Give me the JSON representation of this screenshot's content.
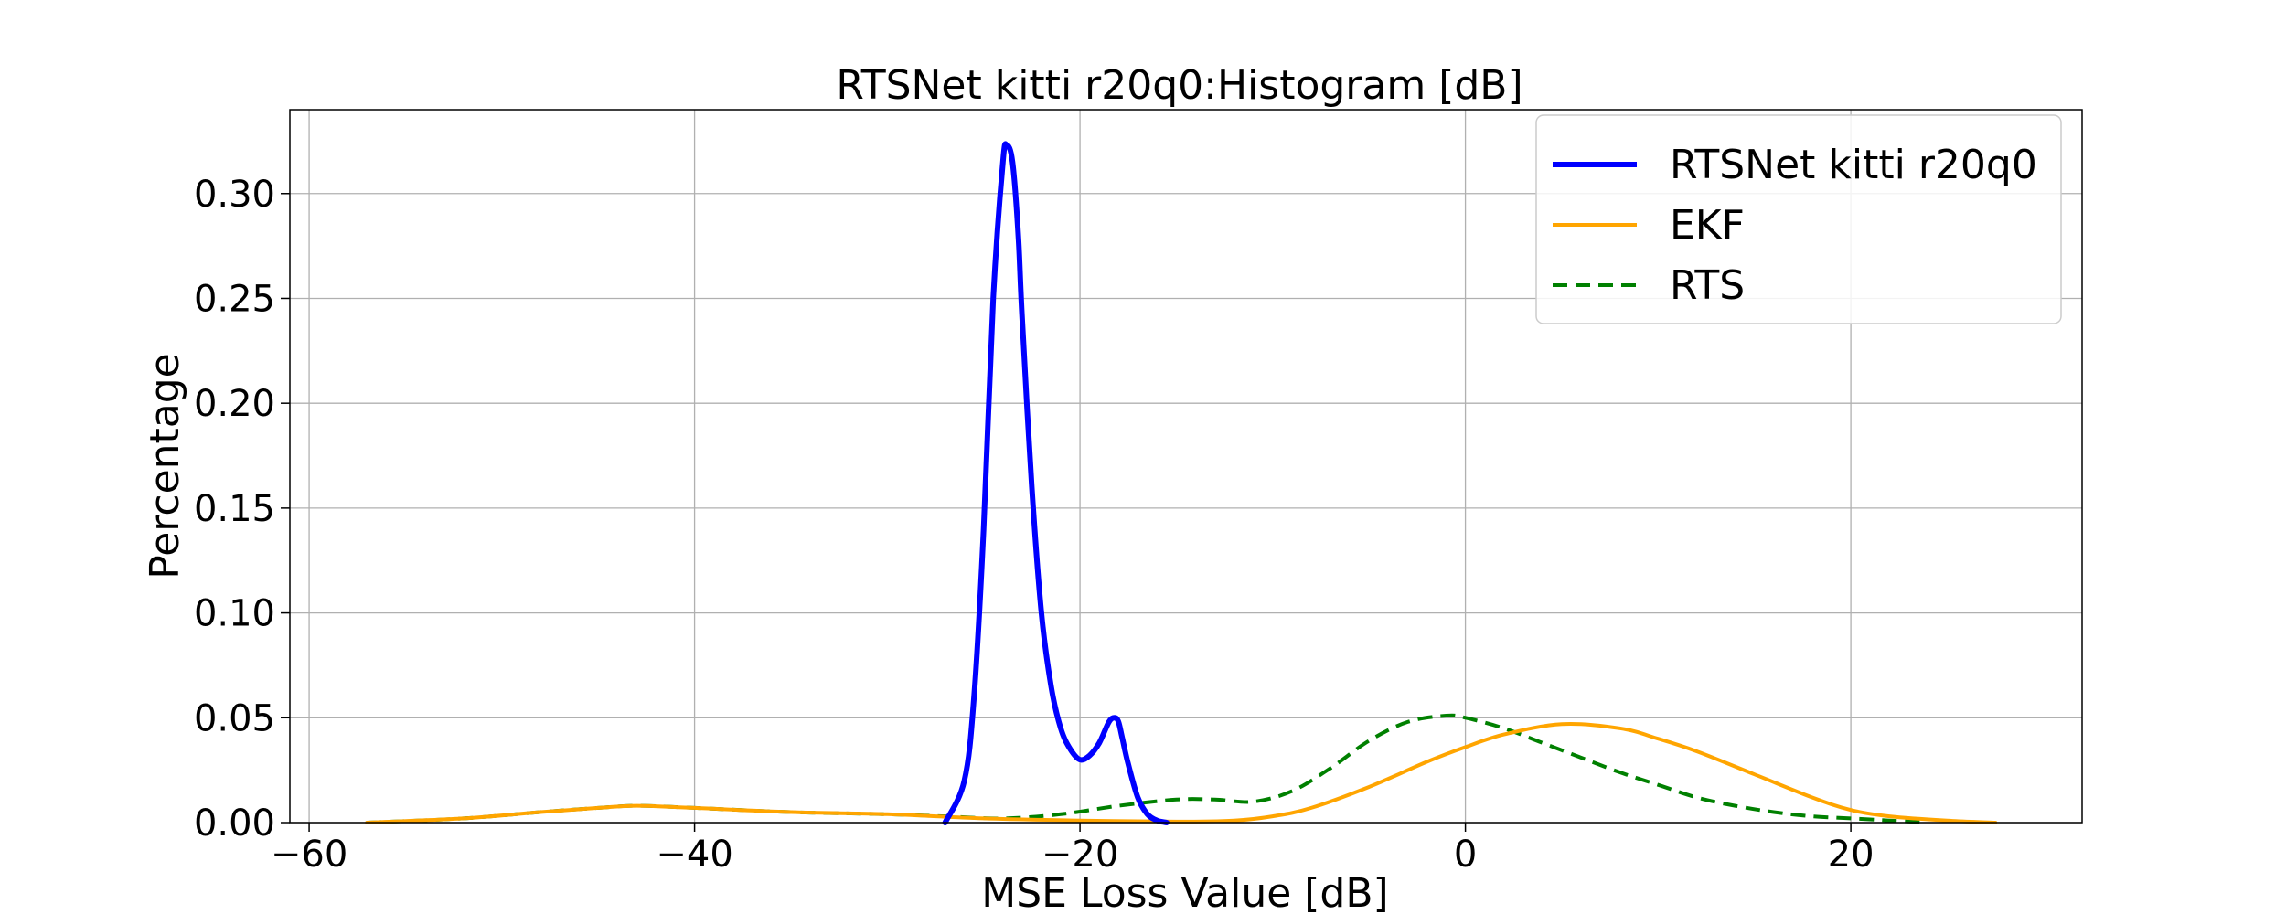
{
  "chart_data": {
    "type": "line",
    "title": "RTSNet kitti r20q0:Histogram [dB]",
    "xlabel": "MSE Loss Value [dB]",
    "ylabel": "Percentage",
    "xlim": [
      -61,
      32
    ],
    "ylim": [
      0,
      0.34
    ],
    "xticks": [
      -60,
      -40,
      -20,
      0,
      20
    ],
    "xtick_labels": [
      "−60",
      "−40",
      "−20",
      "0",
      "20"
    ],
    "yticks": [
      0.0,
      0.05,
      0.1,
      0.15,
      0.2,
      0.25,
      0.3
    ],
    "ytick_labels": [
      "0.00",
      "0.05",
      "0.10",
      "0.15",
      "0.20",
      "0.25",
      "0.30"
    ],
    "grid": true,
    "legend_position": "top-right",
    "series": [
      {
        "name": "RTSNet kitti r20q0",
        "color": "#0000ff",
        "style": "solid",
        "width": "thick",
        "x": [
          -27,
          -26,
          -25.5,
          -25,
          -24.5,
          -24,
          -23.8,
          -23.5,
          -23.2,
          -23,
          -22.5,
          -22,
          -21.5,
          -21,
          -20.5,
          -20,
          -19.5,
          -19,
          -18.5,
          -18.2,
          -18,
          -17.8,
          -17.5,
          -17,
          -16.5,
          -16,
          -15.5
        ],
        "y": [
          0.0,
          0.02,
          0.06,
          0.14,
          0.25,
          0.315,
          0.323,
          0.315,
          0.28,
          0.24,
          0.16,
          0.1,
          0.065,
          0.045,
          0.035,
          0.03,
          0.032,
          0.038,
          0.048,
          0.05,
          0.048,
          0.04,
          0.028,
          0.012,
          0.004,
          0.001,
          0.0
        ]
      },
      {
        "name": "EKF",
        "color": "#ffa500",
        "style": "solid",
        "width": "normal",
        "x": [
          -57,
          -52,
          -48,
          -45,
          -43,
          -40,
          -35,
          -30,
          -25,
          -20,
          -15,
          -12,
          -10,
          -8,
          -5,
          -2,
          0,
          2,
          5,
          8,
          10,
          12,
          15,
          18,
          20,
          22,
          25,
          27.5
        ],
        "y": [
          0.0,
          0.002,
          0.005,
          0.007,
          0.008,
          0.007,
          0.005,
          0.004,
          0.002,
          0.001,
          0.0005,
          0.001,
          0.003,
          0.007,
          0.017,
          0.029,
          0.036,
          0.042,
          0.047,
          0.045,
          0.04,
          0.034,
          0.023,
          0.012,
          0.006,
          0.003,
          0.001,
          0.0
        ]
      },
      {
        "name": "RTS",
        "color": "#008000",
        "style": "dashed",
        "width": "normal",
        "x": [
          -57,
          -52,
          -48,
          -45,
          -43,
          -40,
          -35,
          -30,
          -27,
          -24,
          -21,
          -18,
          -15,
          -13,
          -11,
          -9,
          -7,
          -5,
          -3,
          -1,
          0,
          2,
          4,
          6,
          8,
          10,
          12,
          14,
          16,
          18,
          20,
          22,
          24
        ],
        "y": [
          0.0,
          0.002,
          0.005,
          0.007,
          0.008,
          0.007,
          0.005,
          0.004,
          0.003,
          0.002,
          0.004,
          0.008,
          0.011,
          0.011,
          0.01,
          0.015,
          0.026,
          0.039,
          0.048,
          0.051,
          0.05,
          0.045,
          0.038,
          0.031,
          0.024,
          0.018,
          0.012,
          0.008,
          0.005,
          0.003,
          0.002,
          0.001,
          0.0
        ]
      }
    ]
  }
}
